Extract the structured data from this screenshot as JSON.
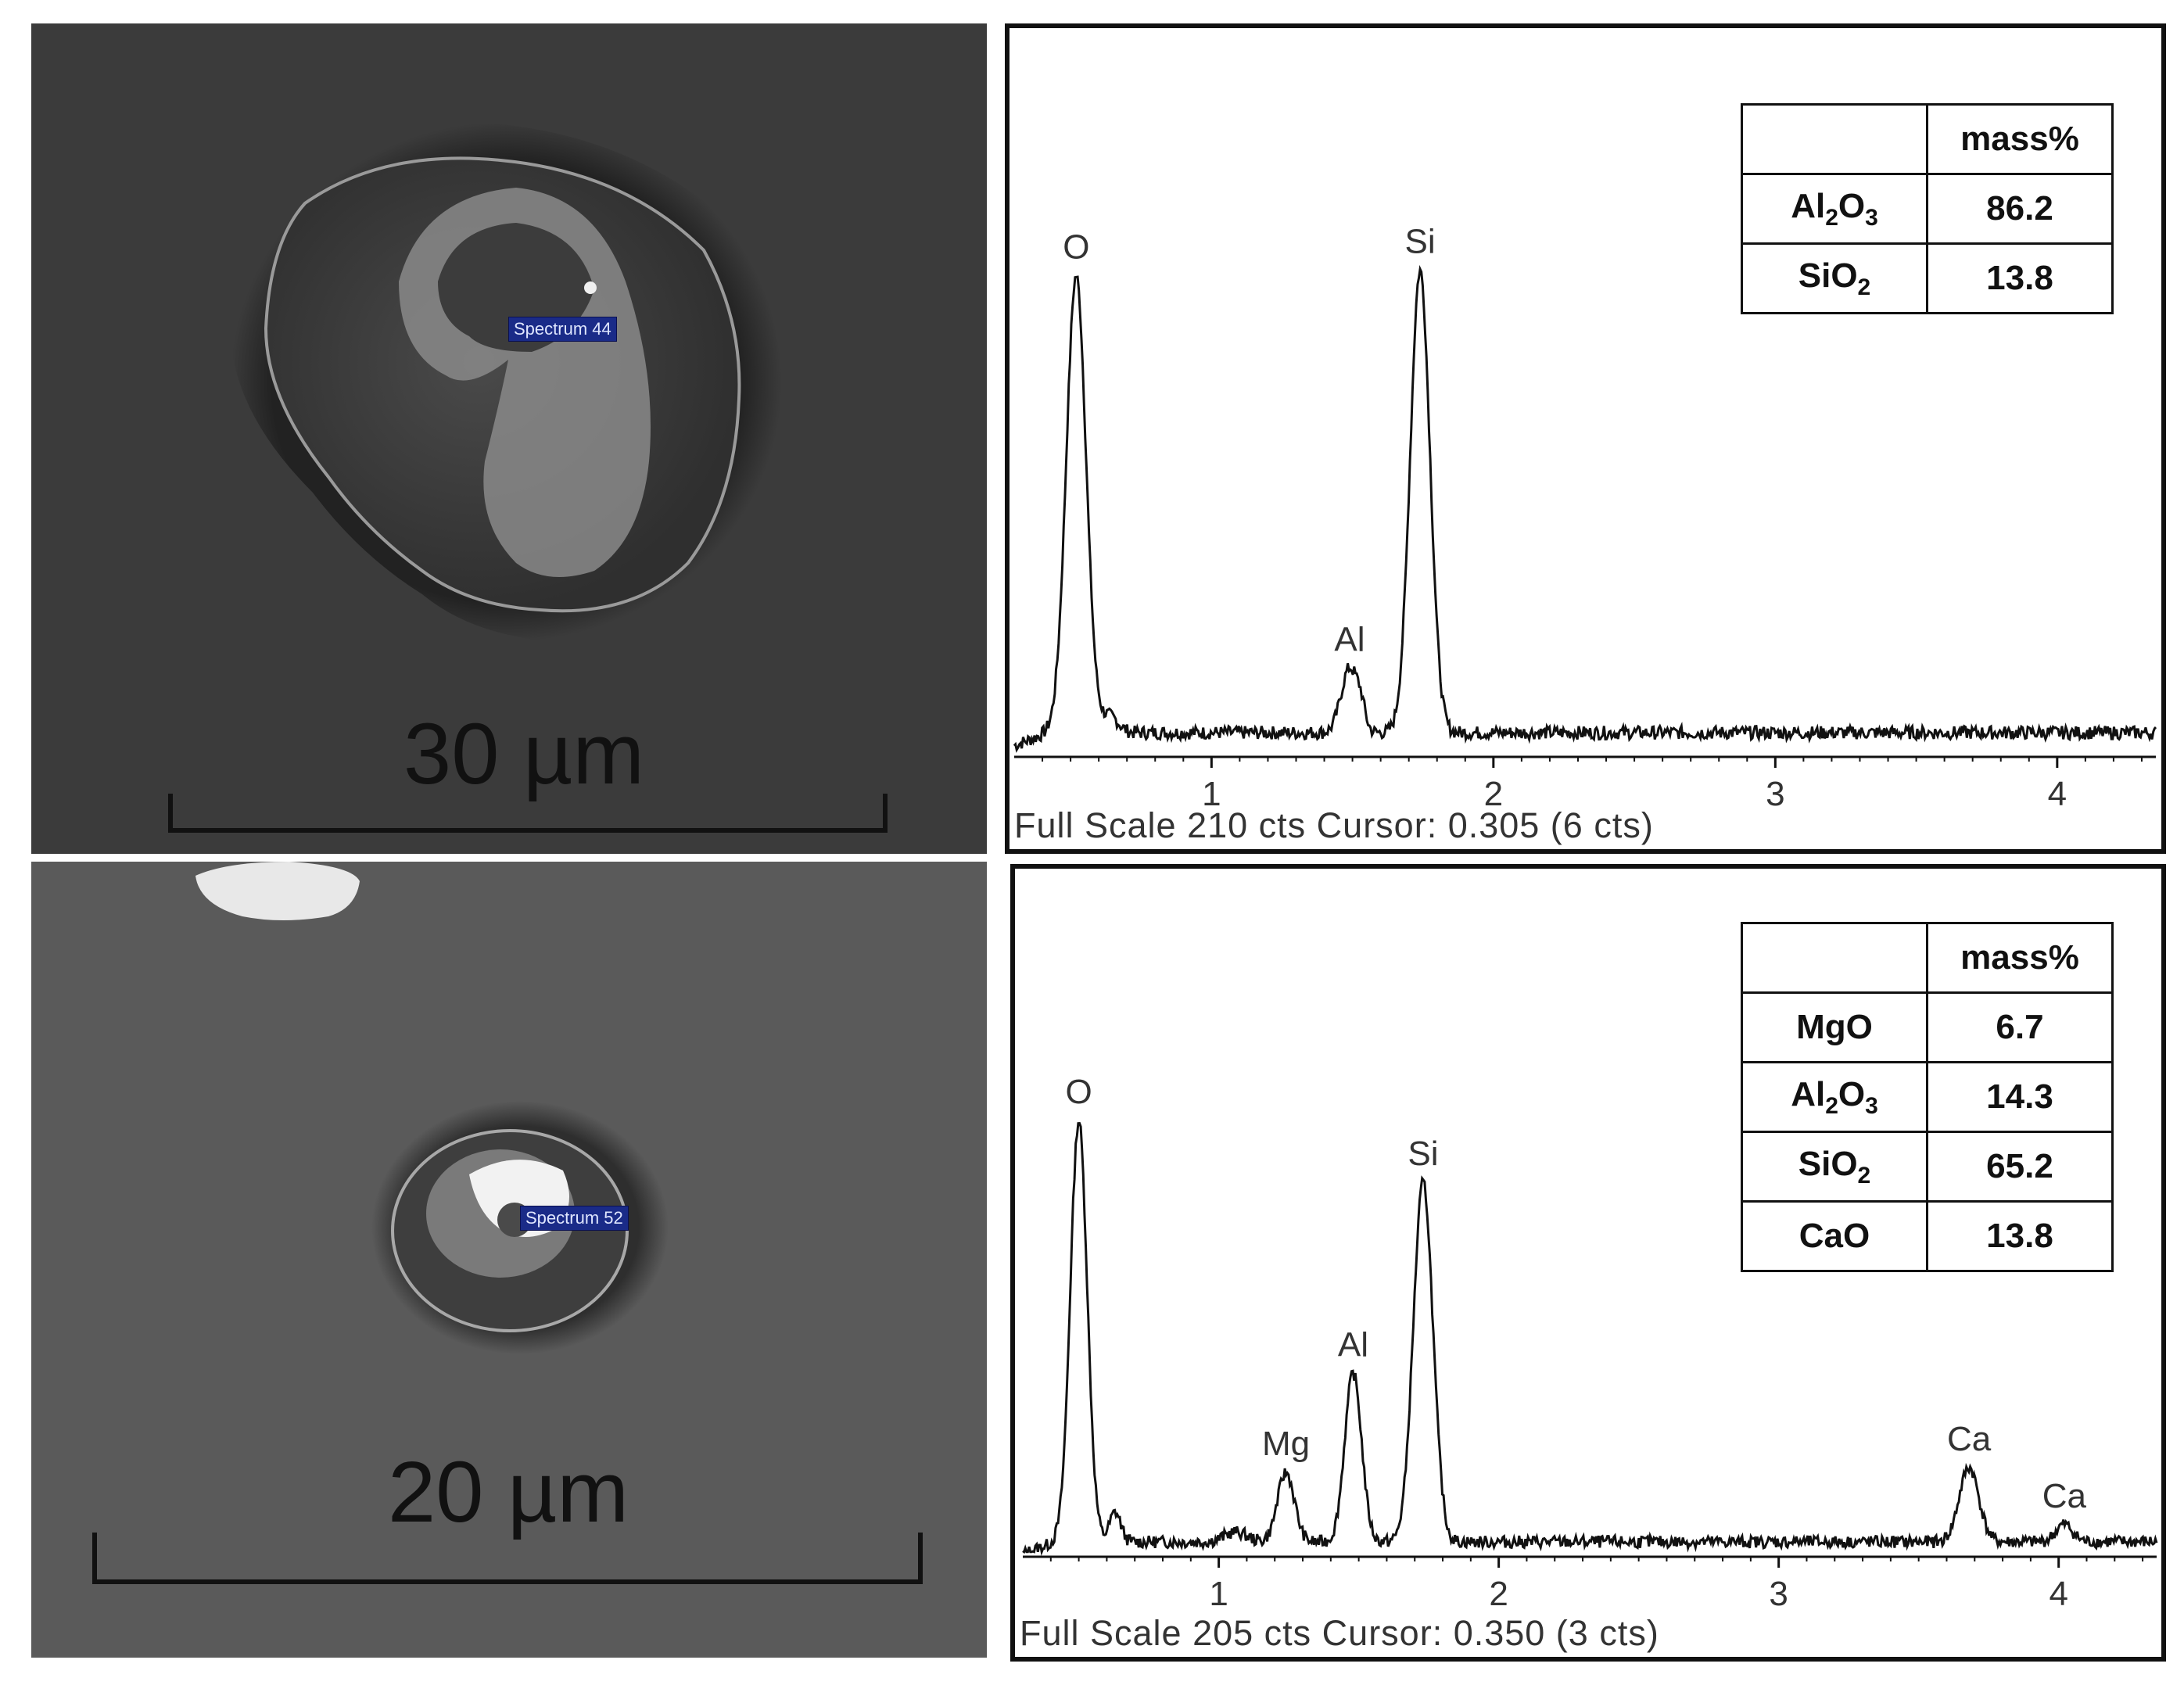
{
  "colors": {
    "spectrum_line": "#111111",
    "sem_background_top": "#3a3a3a",
    "sem_background_bottom": "#5c5c5c",
    "spectrum_marker": "#1a2b88"
  },
  "panels": [
    {
      "sem": {
        "scale_label": "30 µm",
        "spectrum_label": "Spectrum 44"
      },
      "composition": {
        "header": [
          "",
          "mass%"
        ],
        "rows": [
          {
            "oxide_parts": [
              "Al",
              "2",
              "O",
              "3"
            ],
            "mass": "86.2"
          },
          {
            "oxide_parts": [
              "SiO",
              "2"
            ],
            "mass": "13.8"
          }
        ]
      },
      "status_text": "Full Scale 210 cts Cursor: 0.305  (6 cts)"
    },
    {
      "sem": {
        "scale_label": "20 µm",
        "spectrum_label": "Spectrum 52"
      },
      "composition": {
        "header": [
          "",
          "mass%"
        ],
        "rows": [
          {
            "oxide_parts": [
              "MgO"
            ],
            "mass": "6.7"
          },
          {
            "oxide_parts": [
              "Al",
              "2",
              "O",
              "3"
            ],
            "mass": "14.3"
          },
          {
            "oxide_parts": [
              "SiO",
              "2"
            ],
            "mass": "65.2"
          },
          {
            "oxide_parts": [
              "CaO"
            ],
            "mass": "13.8"
          }
        ]
      },
      "status_text": "Full Scale 205 cts Cursor: 0.350  (3 cts)"
    }
  ],
  "chart_data": [
    {
      "type": "line",
      "xlabel": "",
      "ylabel": "",
      "xlim": [
        0.3,
        4.35
      ],
      "ylim": [
        0,
        210
      ],
      "xticks": [
        1,
        2,
        3,
        4
      ],
      "baseline": 9,
      "peaks": [
        {
          "label": "O",
          "x": 0.52,
          "height": 170,
          "width": 0.035
        },
        {
          "label": "Al",
          "x": 1.49,
          "height": 24,
          "width": 0.03
        },
        {
          "label": "Si",
          "x": 1.74,
          "height": 172,
          "width": 0.035
        }
      ],
      "minor_peaks": [
        {
          "x": 1.53,
          "height": 6,
          "width": 0.015
        },
        {
          "x": 0.64,
          "height": 6,
          "width": 0.03
        }
      ],
      "grid": false
    },
    {
      "type": "line",
      "xlabel": "",
      "ylabel": "",
      "xlim": [
        0.3,
        4.35
      ],
      "ylim": [
        0,
        205
      ],
      "xticks": [
        1,
        2,
        3,
        4
      ],
      "baseline": 6,
      "peaks": [
        {
          "label": "O",
          "x": 0.5,
          "height": 170,
          "width": 0.03
        },
        {
          "label": "Mg",
          "x": 1.24,
          "height": 28,
          "width": 0.03
        },
        {
          "label": "Al",
          "x": 1.48,
          "height": 68,
          "width": 0.03
        },
        {
          "label": "Si",
          "x": 1.73,
          "height": 145,
          "width": 0.035
        },
        {
          "label": "Ca",
          "x": 3.68,
          "height": 30,
          "width": 0.035
        },
        {
          "label": "Ca",
          "x": 4.02,
          "height": 7,
          "width": 0.03
        }
      ],
      "minor_peaks": [
        {
          "x": 0.63,
          "height": 12,
          "width": 0.02
        },
        {
          "x": 1.06,
          "height": 4,
          "width": 0.04
        }
      ],
      "grid": false
    }
  ]
}
